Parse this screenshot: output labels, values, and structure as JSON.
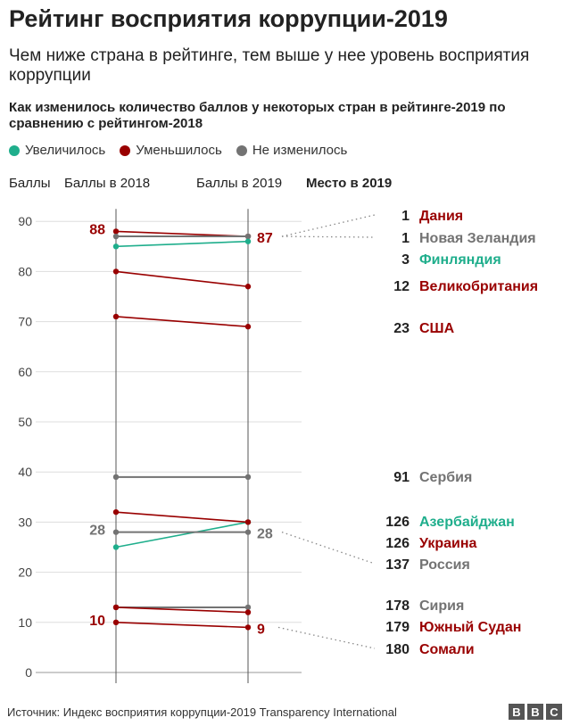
{
  "title": "Рейтинг восприятия коррупции-2019",
  "subtitle": "Чем ниже страна в рейтинге, тем выше у нее уровень восприятия коррупции",
  "description": "Как изменилось количество баллов у некоторых стран в рейтинге-2019 по сравнению с рейтингом-2018",
  "legend": [
    {
      "label": "Увеличилось",
      "color": "#1fae8c"
    },
    {
      "label": "Уменьшилось",
      "color": "#990000"
    },
    {
      "label": "Не изменилось",
      "color": "#737373"
    }
  ],
  "headers": {
    "scores": "Баллы",
    "scores_2018": "Баллы в 2018",
    "scores_2019": "Баллы в 2019",
    "rank_2019": "Место в 2019"
  },
  "colors": {
    "up": "#1fae8c",
    "down": "#990000",
    "same": "#737373"
  },
  "chart_data": {
    "type": "line",
    "xlabel": "",
    "ylabel": "Баллы",
    "x": [
      "Баллы в 2018",
      "Баллы в 2019"
    ],
    "ylim": [
      0,
      95
    ],
    "yticks": [
      0,
      10,
      20,
      30,
      40,
      50,
      60,
      70,
      80,
      90
    ],
    "grid": true,
    "series": [
      {
        "name": "Дания",
        "rank": "1",
        "values": [
          88,
          87
        ],
        "change": "down"
      },
      {
        "name": "Новая Зеландия",
        "rank": "1",
        "values": [
          87,
          87
        ],
        "change": "same"
      },
      {
        "name": "Финляндия",
        "rank": "3",
        "values": [
          85,
          86
        ],
        "change": "up"
      },
      {
        "name": "Великобритания",
        "rank": "12",
        "values": [
          80,
          77
        ],
        "change": "down"
      },
      {
        "name": "США",
        "rank": "23",
        "values": [
          71,
          69
        ],
        "change": "down"
      },
      {
        "name": "Сербия",
        "rank": "91",
        "values": [
          39,
          39
        ],
        "change": "same"
      },
      {
        "name": "Азербайджан",
        "rank": "126",
        "values": [
          25,
          30
        ],
        "change": "up"
      },
      {
        "name": "Украина",
        "rank": "126",
        "values": [
          32,
          30
        ],
        "change": "down"
      },
      {
        "name": "Россия",
        "rank": "137",
        "values": [
          28,
          28
        ],
        "change": "same"
      },
      {
        "name": "Сирия",
        "rank": "178",
        "values": [
          13,
          13
        ],
        "change": "same"
      },
      {
        "name": "Южный Судан",
        "rank": "179",
        "values": [
          13,
          12
        ],
        "change": "down"
      },
      {
        "name": "Сомали",
        "rank": "180",
        "values": [
          10,
          9
        ],
        "change": "down"
      }
    ],
    "annotations": [
      {
        "text": "88",
        "series": "Дания",
        "side": "left",
        "change": "down"
      },
      {
        "text": "87",
        "series": "Дания",
        "side": "right",
        "change": "down"
      },
      {
        "text": "28",
        "series": "Россия",
        "side": "left",
        "change": "same"
      },
      {
        "text": "28",
        "series": "Россия",
        "side": "right",
        "change": "same"
      },
      {
        "text": "10",
        "series": "Сомали",
        "side": "left",
        "change": "down"
      },
      {
        "text": "9",
        "series": "Сомали",
        "side": "right",
        "change": "down"
      }
    ]
  },
  "footer": {
    "source": "Источник:  Индекс восприятия коррупции-2019 Transparency International",
    "logo_letters": [
      "B",
      "B",
      "C"
    ]
  }
}
